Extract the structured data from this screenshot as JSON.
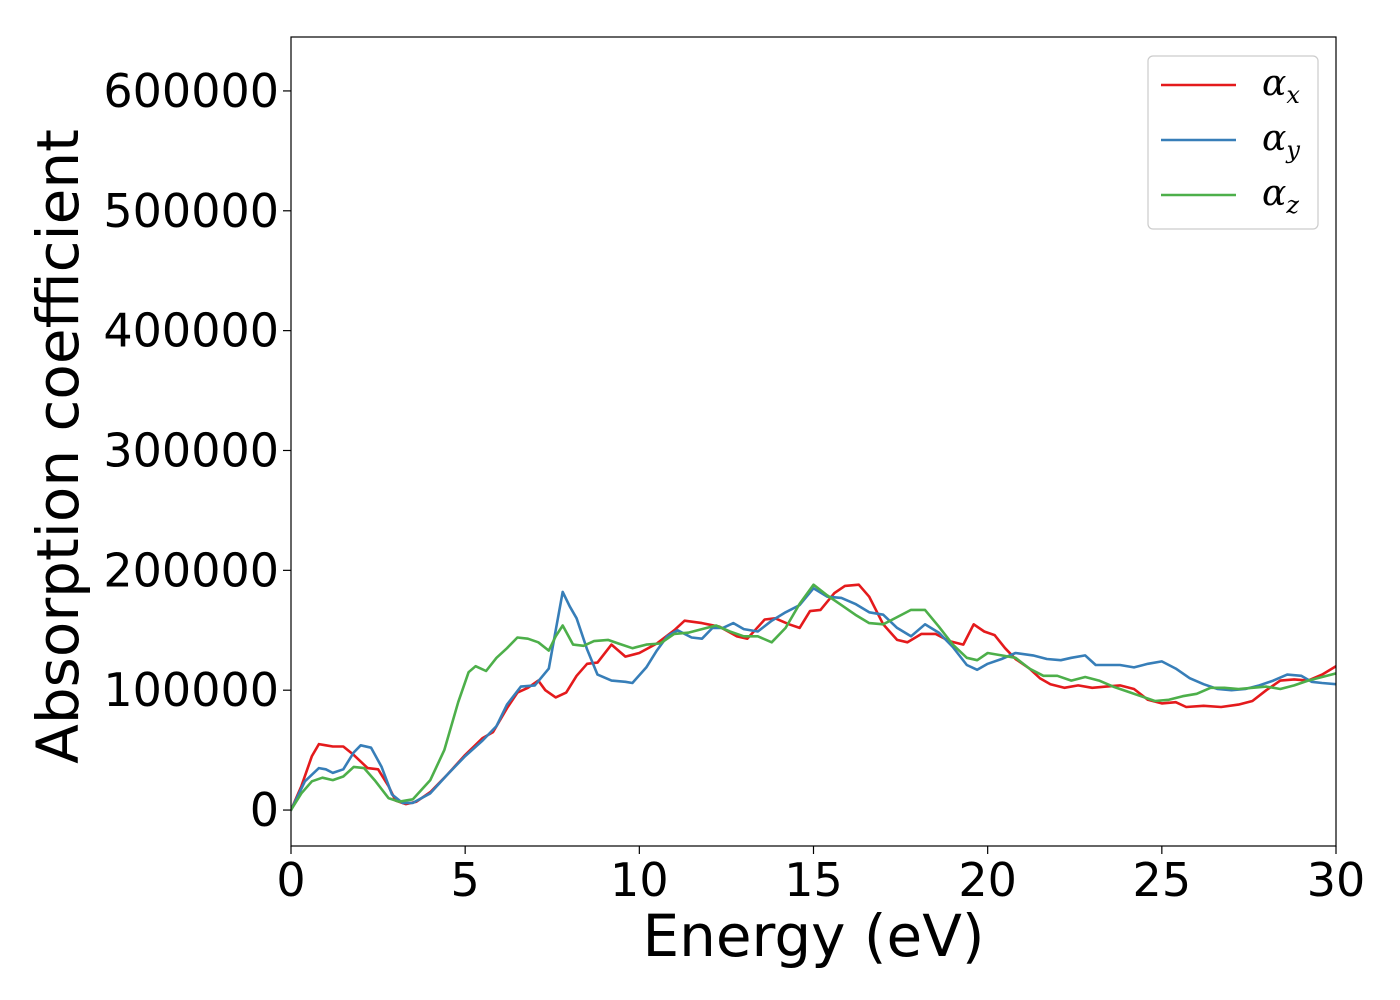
{
  "chart_data": {
    "type": "line",
    "xlabel": "Energy (eV)",
    "ylabel": "Absorption coefficient",
    "xlim": [
      0,
      30
    ],
    "ylim": [
      -30000,
      645000
    ],
    "xticks": [
      0,
      5,
      10,
      15,
      20,
      25,
      30
    ],
    "yticks": [
      0,
      100000,
      200000,
      300000,
      400000,
      500000,
      600000
    ],
    "grid": false,
    "legend_position": "top-right",
    "series": [
      {
        "name": "α_x",
        "label_main": "α",
        "label_sub": "x",
        "color": "#e41a1c",
        "points": [
          [
            0,
            0
          ],
          [
            0.3,
            20000
          ],
          [
            0.6,
            45000
          ],
          [
            0.8,
            55000
          ],
          [
            1.0,
            54000
          ],
          [
            1.2,
            53000
          ],
          [
            1.5,
            53000
          ],
          [
            1.8,
            46000
          ],
          [
            2.2,
            35000
          ],
          [
            2.5,
            34000
          ],
          [
            2.8,
            20000
          ],
          [
            3.0,
            8000
          ],
          [
            3.3,
            5000
          ],
          [
            3.6,
            7000
          ],
          [
            4.0,
            15000
          ],
          [
            4.5,
            30000
          ],
          [
            5.0,
            46000
          ],
          [
            5.5,
            60000
          ],
          [
            5.8,
            65000
          ],
          [
            6.2,
            85000
          ],
          [
            6.5,
            98000
          ],
          [
            6.8,
            102000
          ],
          [
            7.1,
            108000
          ],
          [
            7.3,
            100000
          ],
          [
            7.6,
            94000
          ],
          [
            7.9,
            98000
          ],
          [
            8.2,
            112000
          ],
          [
            8.5,
            122000
          ],
          [
            8.8,
            123000
          ],
          [
            9.2,
            138000
          ],
          [
            9.6,
            128000
          ],
          [
            10.0,
            131000
          ],
          [
            10.5,
            139000
          ],
          [
            11.0,
            150000
          ],
          [
            11.3,
            158000
          ],
          [
            11.8,
            156000
          ],
          [
            12.3,
            153000
          ],
          [
            12.8,
            145000
          ],
          [
            13.1,
            143000
          ],
          [
            13.6,
            159000
          ],
          [
            13.9,
            160000
          ],
          [
            14.3,
            155000
          ],
          [
            14.6,
            152000
          ],
          [
            14.9,
            166000
          ],
          [
            15.2,
            167000
          ],
          [
            15.6,
            181000
          ],
          [
            15.9,
            187000
          ],
          [
            16.3,
            188000
          ],
          [
            16.6,
            178000
          ],
          [
            17.0,
            155000
          ],
          [
            17.4,
            142000
          ],
          [
            17.7,
            140000
          ],
          [
            18.1,
            147000
          ],
          [
            18.5,
            147000
          ],
          [
            18.9,
            141000
          ],
          [
            19.3,
            138000
          ],
          [
            19.6,
            155000
          ],
          [
            19.9,
            149000
          ],
          [
            20.2,
            146000
          ],
          [
            20.5,
            135000
          ],
          [
            20.8,
            126000
          ],
          [
            21.2,
            118000
          ],
          [
            21.5,
            110000
          ],
          [
            21.8,
            105000
          ],
          [
            22.2,
            102000
          ],
          [
            22.6,
            104000
          ],
          [
            23.0,
            102000
          ],
          [
            23.4,
            103000
          ],
          [
            23.8,
            104000
          ],
          [
            24.2,
            101000
          ],
          [
            24.6,
            92000
          ],
          [
            25.0,
            89000
          ],
          [
            25.4,
            90000
          ],
          [
            25.7,
            86000
          ],
          [
            26.2,
            87000
          ],
          [
            26.7,
            86000
          ],
          [
            27.2,
            88000
          ],
          [
            27.6,
            91000
          ],
          [
            28.0,
            100000
          ],
          [
            28.4,
            108000
          ],
          [
            28.8,
            109000
          ],
          [
            29.2,
            108000
          ],
          [
            29.6,
            113000
          ],
          [
            30.0,
            120000
          ]
        ]
      },
      {
        "name": "α_y",
        "label_main": "α",
        "label_sub": "y",
        "color": "#377eb8",
        "points": [
          [
            0,
            0
          ],
          [
            0.4,
            24000
          ],
          [
            0.8,
            35000
          ],
          [
            1.0,
            34000
          ],
          [
            1.2,
            31000
          ],
          [
            1.5,
            34000
          ],
          [
            1.8,
            48000
          ],
          [
            2.0,
            54000
          ],
          [
            2.3,
            52000
          ],
          [
            2.6,
            36000
          ],
          [
            2.9,
            13000
          ],
          [
            3.2,
            6000
          ],
          [
            3.5,
            6000
          ],
          [
            4.0,
            14000
          ],
          [
            4.5,
            30000
          ],
          [
            5.0,
            45000
          ],
          [
            5.5,
            58000
          ],
          [
            5.9,
            70000
          ],
          [
            6.2,
            88000
          ],
          [
            6.6,
            103000
          ],
          [
            7.0,
            104000
          ],
          [
            7.4,
            118000
          ],
          [
            7.6,
            150000
          ],
          [
            7.8,
            182000
          ],
          [
            8.0,
            170000
          ],
          [
            8.2,
            160000
          ],
          [
            8.5,
            134000
          ],
          [
            8.8,
            113000
          ],
          [
            9.2,
            108000
          ],
          [
            9.6,
            107000
          ],
          [
            9.8,
            106000
          ],
          [
            10.2,
            119000
          ],
          [
            10.5,
            133000
          ],
          [
            10.8,
            145000
          ],
          [
            11.1,
            150000
          ],
          [
            11.5,
            144000
          ],
          [
            11.8,
            143000
          ],
          [
            12.1,
            152000
          ],
          [
            12.4,
            152000
          ],
          [
            12.7,
            156000
          ],
          [
            13.0,
            151000
          ],
          [
            13.4,
            149000
          ],
          [
            13.8,
            158000
          ],
          [
            14.2,
            165000
          ],
          [
            14.6,
            171000
          ],
          [
            15.0,
            185000
          ],
          [
            15.4,
            178000
          ],
          [
            15.8,
            177000
          ],
          [
            16.2,
            172000
          ],
          [
            16.6,
            165000
          ],
          [
            17.0,
            163000
          ],
          [
            17.4,
            152000
          ],
          [
            17.8,
            145000
          ],
          [
            18.2,
            155000
          ],
          [
            18.6,
            148000
          ],
          [
            19.0,
            136000
          ],
          [
            19.4,
            121000
          ],
          [
            19.7,
            117000
          ],
          [
            20.0,
            122000
          ],
          [
            20.4,
            126000
          ],
          [
            20.8,
            131000
          ],
          [
            21.3,
            129000
          ],
          [
            21.7,
            126000
          ],
          [
            22.1,
            125000
          ],
          [
            22.4,
            127000
          ],
          [
            22.8,
            129000
          ],
          [
            23.1,
            121000
          ],
          [
            23.4,
            121000
          ],
          [
            23.8,
            121000
          ],
          [
            24.2,
            119000
          ],
          [
            24.6,
            122000
          ],
          [
            25.0,
            124000
          ],
          [
            25.4,
            118000
          ],
          [
            25.8,
            110000
          ],
          [
            26.2,
            105000
          ],
          [
            26.6,
            101000
          ],
          [
            27.0,
            100000
          ],
          [
            27.4,
            101000
          ],
          [
            27.8,
            104000
          ],
          [
            28.2,
            108000
          ],
          [
            28.6,
            113000
          ],
          [
            29.0,
            112000
          ],
          [
            29.3,
            107000
          ],
          [
            29.6,
            106000
          ],
          [
            30.0,
            105000
          ]
        ]
      },
      {
        "name": "α_z",
        "label_main": "α",
        "label_sub": "z",
        "color": "#4daf4a",
        "points": [
          [
            0,
            0
          ],
          [
            0.3,
            14000
          ],
          [
            0.6,
            24000
          ],
          [
            0.9,
            27000
          ],
          [
            1.2,
            25000
          ],
          [
            1.5,
            28000
          ],
          [
            1.8,
            36000
          ],
          [
            2.1,
            35000
          ],
          [
            2.4,
            25000
          ],
          [
            2.8,
            10000
          ],
          [
            3.1,
            7000
          ],
          [
            3.5,
            9000
          ],
          [
            4.0,
            25000
          ],
          [
            4.4,
            50000
          ],
          [
            4.8,
            90000
          ],
          [
            5.1,
            115000
          ],
          [
            5.3,
            120000
          ],
          [
            5.6,
            116000
          ],
          [
            5.9,
            127000
          ],
          [
            6.2,
            135000
          ],
          [
            6.5,
            144000
          ],
          [
            6.8,
            143000
          ],
          [
            7.1,
            140000
          ],
          [
            7.4,
            133000
          ],
          [
            7.6,
            145000
          ],
          [
            7.8,
            154000
          ],
          [
            8.1,
            138000
          ],
          [
            8.4,
            137000
          ],
          [
            8.7,
            141000
          ],
          [
            9.1,
            142000
          ],
          [
            9.4,
            139000
          ],
          [
            9.8,
            135000
          ],
          [
            10.2,
            138000
          ],
          [
            10.6,
            139000
          ],
          [
            11.0,
            147000
          ],
          [
            11.4,
            148000
          ],
          [
            11.8,
            151000
          ],
          [
            12.2,
            154000
          ],
          [
            12.6,
            149000
          ],
          [
            13.0,
            145000
          ],
          [
            13.4,
            145000
          ],
          [
            13.8,
            140000
          ],
          [
            14.2,
            152000
          ],
          [
            14.6,
            172000
          ],
          [
            15.0,
            188000
          ],
          [
            15.4,
            179000
          ],
          [
            15.8,
            171000
          ],
          [
            16.2,
            163000
          ],
          [
            16.6,
            156000
          ],
          [
            17.0,
            155000
          ],
          [
            17.4,
            161000
          ],
          [
            17.8,
            167000
          ],
          [
            18.2,
            167000
          ],
          [
            18.6,
            153000
          ],
          [
            19.0,
            138000
          ],
          [
            19.4,
            127000
          ],
          [
            19.7,
            125000
          ],
          [
            20.0,
            131000
          ],
          [
            20.4,
            129000
          ],
          [
            20.8,
            127000
          ],
          [
            21.2,
            118000
          ],
          [
            21.6,
            112000
          ],
          [
            22.0,
            112000
          ],
          [
            22.4,
            108000
          ],
          [
            22.8,
            111000
          ],
          [
            23.2,
            108000
          ],
          [
            23.6,
            103000
          ],
          [
            24.0,
            99000
          ],
          [
            24.4,
            95000
          ],
          [
            24.8,
            91000
          ],
          [
            25.2,
            92000
          ],
          [
            25.6,
            95000
          ],
          [
            26.0,
            97000
          ],
          [
            26.4,
            102000
          ],
          [
            26.8,
            102000
          ],
          [
            27.2,
            101000
          ],
          [
            27.6,
            102000
          ],
          [
            28.0,
            103000
          ],
          [
            28.4,
            101000
          ],
          [
            28.8,
            104000
          ],
          [
            29.2,
            108000
          ],
          [
            29.6,
            111000
          ],
          [
            30.0,
            114000
          ]
        ]
      }
    ]
  }
}
